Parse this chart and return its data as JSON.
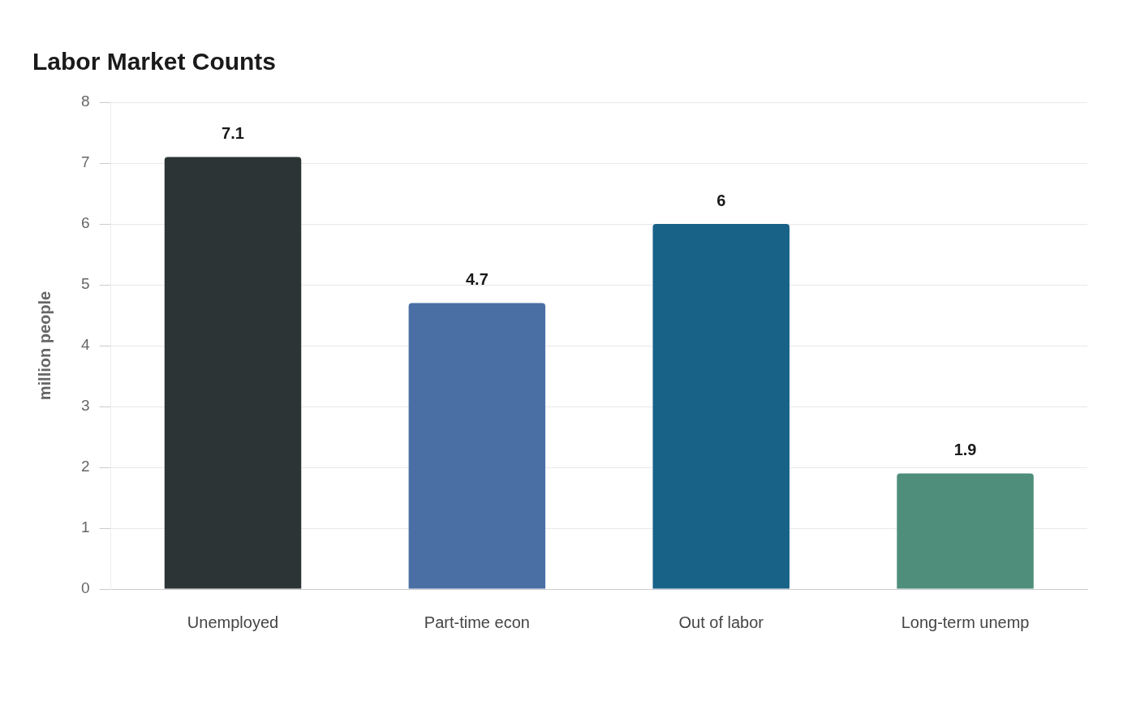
{
  "chart_data": {
    "type": "bar",
    "title": "Labor Market Counts",
    "ylabel": "million people",
    "categories": [
      "Unemployed",
      "Part-time econ",
      "Out of labor",
      "Long-term unemp"
    ],
    "values": [
      7.1,
      4.7,
      6,
      1.9
    ],
    "colors": [
      "#2d3436",
      "#4a6fa5",
      "#186288",
      "#4e8e7b"
    ],
    "ylim": [
      0,
      8
    ],
    "yticks": [
      0,
      1,
      2,
      3,
      4,
      5,
      6,
      7,
      8
    ],
    "grid": "y",
    "legend": false,
    "data_labels": true
  }
}
